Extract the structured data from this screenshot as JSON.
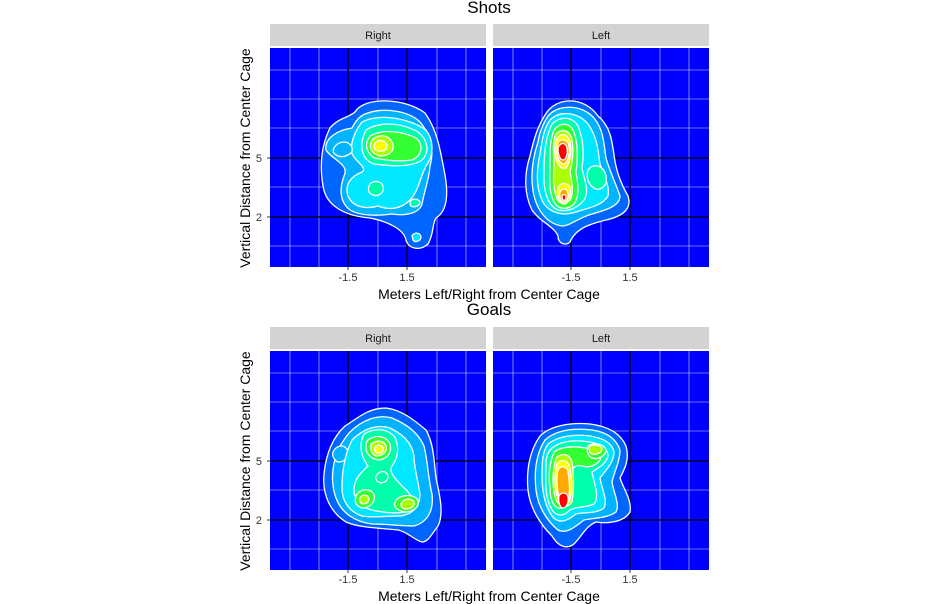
{
  "colors": {
    "panel_background": "#0000ff",
    "strip_background": "#d3d3d3",
    "contour_line": "#ffffff",
    "fill_scale": [
      "#0066ff",
      "#00b4ff",
      "#00e8ff",
      "#00ffaa",
      "#33ff33",
      "#aaff00",
      "#ffff00",
      "#ffaa00",
      "#ff0000"
    ]
  },
  "chart_data": [
    {
      "type": "heatmap",
      "subtype": "filled-density-contour",
      "title": "Shots",
      "xlabel": "Meters Left/Right from Center Cage",
      "ylabel": "Vertical Distance from Center Cage",
      "x_ticks": [
        "-1.5",
        "1.5"
      ],
      "y_ticks": [
        "5",
        "2"
      ],
      "grid": true,
      "facets": [
        {
          "label": "Right",
          "peaks": [
            {
              "x": 0.0,
              "y": 5.5,
              "level": 6
            },
            {
              "x": 1.3,
              "y": 5.3,
              "level": 4
            },
            {
              "x": -2.0,
              "y": 5.3,
              "level": 2
            },
            {
              "x": -0.1,
              "y": 3.5,
              "level": 2
            },
            {
              "x": 1.9,
              "y": 2.9,
              "level": 1
            },
            {
              "x": 2.0,
              "y": 1.0,
              "level": 1
            }
          ]
        },
        {
          "label": "Left",
          "peaks": [
            {
              "x": -1.7,
              "y": 5.4,
              "level": 9
            },
            {
              "x": -1.7,
              "y": 2.9,
              "level": 8
            },
            {
              "x": -0.2,
              "y": 4.5,
              "level": 4
            },
            {
              "x": -2.3,
              "y": 4.0,
              "level": 3
            }
          ]
        }
      ]
    },
    {
      "type": "heatmap",
      "subtype": "filled-density-contour",
      "title": "Goals",
      "xlabel": "Meters Left/Right from Center Cage",
      "ylabel": "Vertical Distance from Center Cage",
      "x_ticks": [
        "-1.5",
        "1.5"
      ],
      "y_ticks": [
        "5",
        "2"
      ],
      "grid": true,
      "facets": [
        {
          "label": "Right",
          "peaks": [
            {
              "x": 0.0,
              "y": 5.6,
              "level": 6
            },
            {
              "x": -0.8,
              "y": 2.7,
              "level": 4
            },
            {
              "x": 1.4,
              "y": 2.8,
              "level": 4
            },
            {
              "x": 0.6,
              "y": 3.8,
              "level": 3
            },
            {
              "x": -2.0,
              "y": 5.4,
              "level": 1
            }
          ]
        },
        {
          "label": "Left",
          "peaks": [
            {
              "x": -1.7,
              "y": 3.6,
              "level": 9
            },
            {
              "x": -1.7,
              "y": 2.8,
              "level": 9
            },
            {
              "x": -0.2,
              "y": 5.3,
              "level": 4
            },
            {
              "x": -0.5,
              "y": 3.5,
              "level": 3
            }
          ]
        }
      ]
    }
  ]
}
